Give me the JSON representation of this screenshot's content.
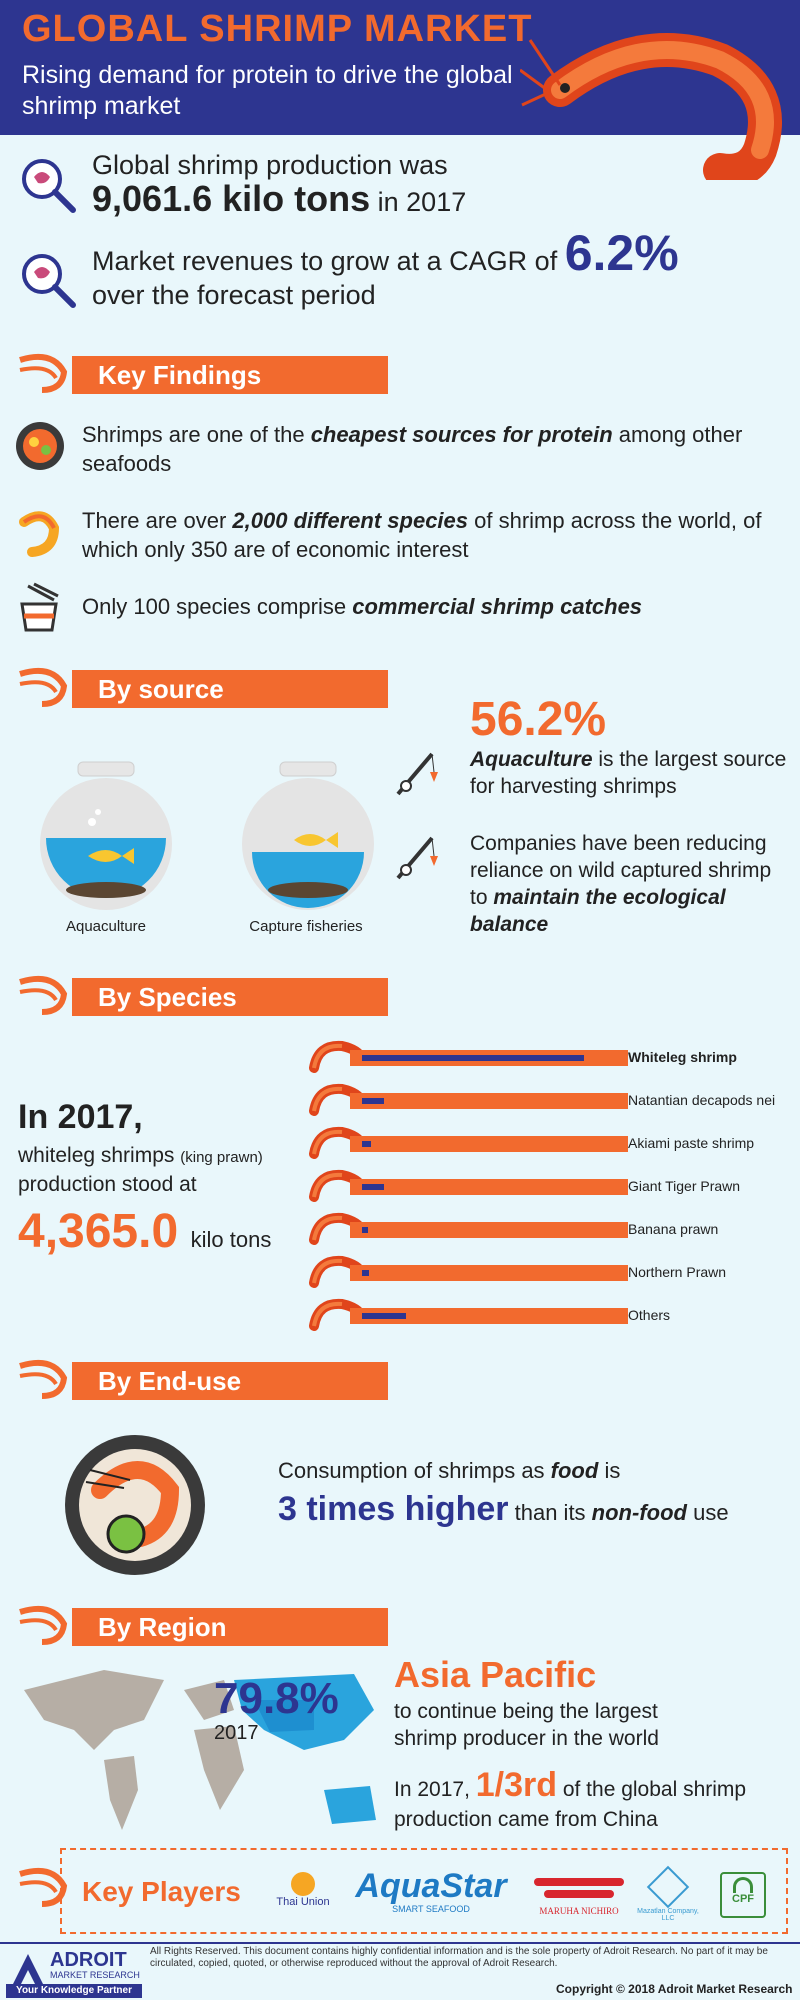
{
  "header": {
    "title": "GLOBAL SHRIMP MARKET",
    "subtitle": "Rising demand for protein to drive the global shrimp market"
  },
  "stats": {
    "production_prefix": "Global shrimp production was",
    "production_value": "9,061.6 kilo tons",
    "production_suffix": "in 2017",
    "cagr_prefix": "Market revenues to grow at a CAGR of",
    "cagr_value": "6.2%",
    "cagr_suffix": "over the forecast period"
  },
  "key_findings": {
    "title": "Key Findings",
    "item1_a": "Shrimps are one of the ",
    "item1_b": "cheapest sources for protein",
    "item1_c": " among other seafoods",
    "item2_a": "There are over ",
    "item2_b": "2,000 different species",
    "item2_c": " of shrimp across the world, of which only 350 are of economic interest",
    "item3_a": "Only 100 species comprise ",
    "item3_b": "commercial shrimp catches"
  },
  "by_source": {
    "title": "By source",
    "label_aqua": "Aquaculture",
    "label_capture": "Capture fisheries",
    "percent": "56.2%",
    "text1_b": "Aquaculture",
    "text1_c": " is the largest source for harvesting shrimps",
    "text2_a": "Companies have been reducing reliance on wild captured shrimp to ",
    "text2_b": "maintain the ecological balance"
  },
  "by_species": {
    "title": "By Species",
    "year_line": "In 2017,",
    "desc_a": "whiteleg shrimps",
    "desc_b": "(king prawn)",
    "desc_c": "production stood at",
    "value": "4,365.0",
    "unit": "kilo tons"
  },
  "chart_data": {
    "type": "bar",
    "title": "By Species",
    "categories": [
      "Whiteleg shrimp",
      "Natantian decapods nei",
      "Akiami paste shrimp",
      "Giant Tiger Prawn",
      "Banana prawn",
      "Northern Prawn",
      "Others"
    ],
    "values": [
      4365.0,
      440,
      170,
      430,
      80,
      130,
      860
    ],
    "unit": "kilo tons"
  },
  "by_enduse": {
    "title": "By End-use",
    "line1_a": "Consumption of shrimps as ",
    "line1_b": "food",
    "line1_c": " is",
    "line2_a": "3 times higher",
    "line2_b": " than its ",
    "line2_c": "non-food",
    "line2_d": " use"
  },
  "by_region": {
    "title": "By Region",
    "percent": "79.8%",
    "year": "2017",
    "region": "Asia Pacific",
    "region_text": "to continue being the largest shrimp producer in the world",
    "china_a": "In 2017, ",
    "china_b": "1/3rd",
    "china_c": " of the global shrimp production came from China"
  },
  "key_players": {
    "title": "Key Players",
    "p1": "Thai Union",
    "p2": "AquaStar",
    "p2_sub": "SMART SEAFOOD",
    "p3": "MARUHA NICHIRO",
    "p4": "Mazatlan Company, LLC",
    "p5": "CPF"
  },
  "footer": {
    "brand": "ADROIT",
    "brand_sub": "MARKET RESEARCH",
    "tagline": "Your Knowledge Partner",
    "disclaimer": "All Rights Reserved. This document contains highly confidential information and is the sole property of Adroit Research. No part of it may be circulated, copied, quoted, or otherwise reproduced without the approval of Adroit Research.",
    "copyright": "Copyright © 2018 Adroit Market Research"
  },
  "colors": {
    "orange": "#f26a2e",
    "navy": "#2d3590",
    "bg": "#e9f7fb"
  }
}
